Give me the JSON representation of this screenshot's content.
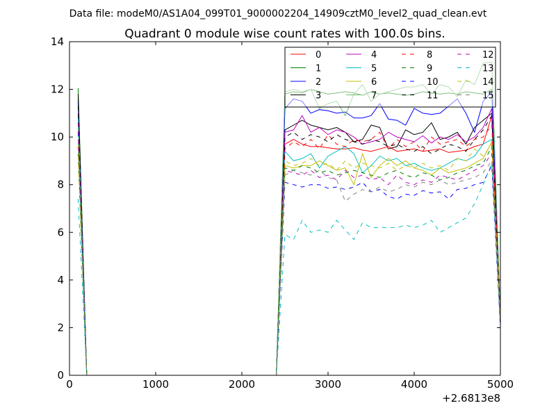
{
  "suptitle": "Data file: modeM0/AS1A04_099T01_9000002204_14909cztM0_level2_quad_clean.evt",
  "chart_data": {
    "type": "line",
    "title": "Quadrant 0 module wise count rates with 100.0s bins.",
    "xlabel": "",
    "ylabel": "",
    "x_offset_label": "+2.6813e8",
    "xlim": [
      0,
      5000
    ],
    "ylim": [
      0,
      14
    ],
    "xticks": [
      0,
      1000,
      2000,
      3000,
      4000,
      5000
    ],
    "yticks": [
      0,
      2,
      4,
      6,
      8,
      10,
      12,
      14
    ],
    "grid": false,
    "legend": {
      "placement": "top-right",
      "columns": 4
    },
    "x": [
      100,
      200,
      300,
      400,
      500,
      600,
      700,
      800,
      900,
      1000,
      1100,
      1200,
      1300,
      1400,
      1500,
      1600,
      1700,
      1800,
      1900,
      2000,
      2100,
      2200,
      2300,
      2400,
      2500,
      2600,
      2700,
      2800,
      2900,
      3000,
      3100,
      3200,
      3300,
      3400,
      3500,
      3600,
      3700,
      3800,
      3900,
      4000,
      4100,
      4200,
      4300,
      4400,
      4500,
      4600,
      4700,
      4800,
      4900,
      5000
    ],
    "series": [
      {
        "name": "0",
        "color": "#ff0000",
        "dash": "solid",
        "values": [
          11.6,
          0,
          0,
          0,
          0,
          0,
          0,
          0,
          0,
          0,
          0,
          0,
          0,
          0,
          0,
          0,
          0,
          0,
          0,
          0,
          0,
          0,
          0,
          0,
          9.7,
          9.9,
          9.7,
          9.6,
          9.6,
          9.55,
          9.5,
          9.5,
          9.55,
          9.45,
          9.4,
          9.5,
          9.6,
          9.4,
          9.45,
          9.5,
          9.4,
          9.45,
          9.5,
          9.35,
          9.4,
          9.45,
          9.6,
          9.7,
          10.9,
          2.2
        ]
      },
      {
        "name": "1",
        "color": "#007f00",
        "dash": "solid",
        "values": [
          12.05,
          0,
          0,
          0,
          0,
          0,
          0,
          0,
          0,
          0,
          0,
          0,
          0,
          0,
          0,
          0,
          0,
          0,
          0,
          0,
          0,
          0,
          0,
          0,
          11.8,
          11.9,
          11.85,
          12.0,
          11.9,
          11.8,
          11.85,
          11.9,
          11.85,
          11.75,
          11.9,
          11.8,
          11.85,
          11.8,
          11.75,
          11.8,
          11.9,
          11.85,
          11.8,
          11.85,
          11.8,
          11.9,
          11.85,
          11.8,
          12.0,
          2.3
        ]
      },
      {
        "name": "2",
        "color": "#0000ff",
        "dash": "solid",
        "values": [
          11.5,
          0,
          0,
          0,
          0,
          0,
          0,
          0,
          0,
          0,
          0,
          0,
          0,
          0,
          0,
          0,
          0,
          0,
          0,
          0,
          0,
          0,
          0,
          0,
          11.2,
          11.6,
          11.5,
          11.0,
          11.15,
          11.1,
          11.0,
          11.05,
          10.8,
          10.8,
          10.9,
          11.4,
          10.75,
          10.7,
          10.5,
          11.2,
          11.0,
          10.95,
          11.0,
          11.3,
          11.6,
          11.0,
          10.2,
          11.5,
          11.9,
          2.2
        ]
      },
      {
        "name": "3",
        "color": "#000000",
        "dash": "solid",
        "values": [
          11.8,
          0,
          0,
          0,
          0,
          0,
          0,
          0,
          0,
          0,
          0,
          0,
          0,
          0,
          0,
          0,
          0,
          0,
          0,
          0,
          0,
          0,
          0,
          0,
          10.3,
          10.5,
          10.7,
          10.5,
          10.4,
          10.3,
          10.4,
          10.2,
          9.8,
          9.9,
          10.5,
          10.4,
          9.5,
          9.6,
          10.3,
          10.1,
          10.2,
          10.6,
          9.9,
          10.0,
          10.2,
          9.7,
          10.4,
          10.7,
          11.0,
          2.6
        ]
      },
      {
        "name": "4",
        "color": "#bf00bf",
        "dash": "solid",
        "values": [
          11.0,
          0,
          0,
          0,
          0,
          0,
          0,
          0,
          0,
          0,
          0,
          0,
          0,
          0,
          0,
          0,
          0,
          0,
          0,
          0,
          0,
          0,
          0,
          0,
          10.2,
          10.3,
          10.9,
          10.2,
          10.4,
          10.1,
          10.3,
          10.2,
          10.0,
          9.7,
          9.8,
          9.9,
          10.2,
          10.0,
          9.9,
          9.8,
          10.05,
          9.75,
          10.0,
          9.9,
          10.1,
          9.8,
          10.0,
          10.4,
          11.2,
          2.3
        ]
      },
      {
        "name": "5",
        "color": "#00bfbf",
        "dash": "solid",
        "values": [
          10.9,
          0,
          0,
          0,
          0,
          0,
          0,
          0,
          0,
          0,
          0,
          0,
          0,
          0,
          0,
          0,
          0,
          0,
          0,
          0,
          0,
          0,
          0,
          0,
          9.4,
          9.0,
          9.1,
          9.3,
          8.7,
          9.2,
          9.4,
          9.6,
          9.3,
          8.5,
          8.8,
          9.2,
          9.0,
          9.1,
          8.8,
          8.9,
          8.7,
          8.6,
          8.7,
          8.9,
          9.1,
          9.0,
          9.2,
          9.7,
          9.9,
          2.1
        ]
      },
      {
        "name": "6",
        "color": "#bfbf00",
        "dash": "solid",
        "values": [
          9.8,
          0,
          0,
          0,
          0,
          0,
          0,
          0,
          0,
          0,
          0,
          0,
          0,
          0,
          0,
          0,
          0,
          0,
          0,
          0,
          0,
          0,
          0,
          0,
          8.8,
          8.7,
          8.8,
          8.8,
          9.0,
          8.8,
          8.6,
          8.7,
          8.0,
          9.3,
          8.3,
          8.8,
          9.1,
          8.8,
          9.0,
          8.7,
          8.6,
          8.4,
          8.7,
          8.5,
          8.6,
          8.7,
          8.9,
          9.1,
          9.8,
          2.4
        ]
      },
      {
        "name": "7",
        "color": "#6cba6c",
        "dash": "solid",
        "values": [
          10.4,
          0,
          0,
          0,
          0,
          0,
          0,
          0,
          0,
          0,
          0,
          0,
          0,
          0,
          0,
          0,
          0,
          0,
          0,
          0,
          0,
          0,
          0,
          0,
          11.9,
          12.0,
          11.9,
          12.0,
          11.2,
          11.4,
          11.5,
          10.9,
          11.8,
          12.2,
          11.5,
          11.8,
          11.9,
          12.0,
          12.1,
          12.1,
          12.2,
          11.8,
          12.2,
          12.1,
          11.7,
          12.4,
          12.2,
          13.1,
          13.15,
          2.5
        ]
      },
      {
        "name": "8",
        "color": "#ff0000",
        "dash": "dashed",
        "values": [
          9.6,
          0,
          0,
          0,
          0,
          0,
          0,
          0,
          0,
          0,
          0,
          0,
          0,
          0,
          0,
          0,
          0,
          0,
          0,
          0,
          0,
          0,
          0,
          0,
          9.5,
          9.8,
          9.6,
          9.9,
          9.5,
          10.1,
          9.7,
          9.6,
          9.9,
          9.8,
          9.9,
          10.2,
          9.5,
          9.9,
          9.6,
          9.8,
          9.4,
          10.0,
          9.7,
          9.8,
          9.9,
          9.6,
          9.9,
          10.0,
          10.5,
          2.3
        ]
      },
      {
        "name": "9",
        "color": "#007f00",
        "dash": "dashed",
        "values": [
          9.3,
          0,
          0,
          0,
          0,
          0,
          0,
          0,
          0,
          0,
          0,
          0,
          0,
          0,
          0,
          0,
          0,
          0,
          0,
          0,
          0,
          0,
          0,
          0,
          8.7,
          8.6,
          8.8,
          8.7,
          8.5,
          8.6,
          8.4,
          8.5,
          8.6,
          8.5,
          8.4,
          8.3,
          8.5,
          8.6,
          8.4,
          8.3,
          8.5,
          8.4,
          8.2,
          8.3,
          8.5,
          8.6,
          8.8,
          8.9,
          9.6,
          2.2
        ]
      },
      {
        "name": "10",
        "color": "#0000ff",
        "dash": "dashed",
        "values": [
          10.2,
          0,
          0,
          0,
          0,
          0,
          0,
          0,
          0,
          0,
          0,
          0,
          0,
          0,
          0,
          0,
          0,
          0,
          0,
          0,
          0,
          0,
          0,
          0,
          8.1,
          8.0,
          7.9,
          8.0,
          8.0,
          7.85,
          7.9,
          7.8,
          7.9,
          8.1,
          7.7,
          7.8,
          7.5,
          7.4,
          7.6,
          7.55,
          7.75,
          7.65,
          7.7,
          7.4,
          7.8,
          7.85,
          8.0,
          8.1,
          8.8,
          2.0
        ]
      },
      {
        "name": "11",
        "color": "#000000",
        "dash": "dashed",
        "values": [
          11.3,
          0,
          0,
          0,
          0,
          0,
          0,
          0,
          0,
          0,
          0,
          0,
          0,
          0,
          0,
          0,
          0,
          0,
          0,
          0,
          0,
          0,
          0,
          0,
          10.0,
          10.2,
          9.9,
          10.1,
          10.0,
          9.8,
          10.1,
          9.9,
          9.8,
          9.7,
          9.9,
          9.8,
          9.6,
          9.7,
          9.5,
          9.4,
          9.6,
          9.3,
          9.5,
          9.7,
          9.6,
          9.4,
          9.9,
          10.3,
          10.9,
          2.4
        ]
      },
      {
        "name": "12",
        "color": "#bf00bf",
        "dash": "dashed",
        "values": [
          10.6,
          0,
          0,
          0,
          0,
          0,
          0,
          0,
          0,
          0,
          0,
          0,
          0,
          0,
          0,
          0,
          0,
          0,
          0,
          0,
          0,
          0,
          0,
          0,
          8.6,
          8.5,
          8.4,
          8.6,
          8.3,
          8.4,
          8.2,
          8.6,
          8.3,
          8.4,
          8.2,
          8.3,
          8.0,
          8.4,
          8.1,
          8.0,
          8.2,
          8.1,
          8.4,
          8.3,
          8.2,
          8.4,
          8.6,
          8.8,
          9.3,
          2.2
        ]
      },
      {
        "name": "13",
        "color": "#00bfbf",
        "dash": "dashed",
        "values": [
          7.4,
          0,
          0,
          0,
          0,
          0,
          0,
          0,
          0,
          0,
          0,
          0,
          0,
          0,
          0,
          0,
          0,
          0,
          0,
          0,
          0,
          0,
          0,
          0,
          5.9,
          5.7,
          6.5,
          6.0,
          6.1,
          6.0,
          6.5,
          6.1,
          5.7,
          6.4,
          6.2,
          6.2,
          6.2,
          6.2,
          6.3,
          6.2,
          6.3,
          6.5,
          6.0,
          6.2,
          6.4,
          6.6,
          7.2,
          8.0,
          8.9,
          2.1
        ]
      },
      {
        "name": "14",
        "color": "#bfbf00",
        "dash": "dashed",
        "values": [
          9.2,
          0,
          0,
          0,
          0,
          0,
          0,
          0,
          0,
          0,
          0,
          0,
          0,
          0,
          0,
          0,
          0,
          0,
          0,
          0,
          0,
          0,
          0,
          0,
          9.0,
          8.8,
          8.9,
          9.1,
          8.8,
          8.9,
          8.6,
          9.0,
          8.7,
          8.9,
          8.8,
          8.7,
          8.9,
          8.6,
          8.8,
          8.7,
          8.9,
          8.7,
          8.8,
          8.6,
          9.1,
          9.0,
          9.5,
          9.2,
          9.7,
          2.3
        ]
      },
      {
        "name": "15",
        "color": "#808080",
        "dash": "dashed",
        "values": [
          9.9,
          0,
          0,
          0,
          0,
          0,
          0,
          0,
          0,
          0,
          0,
          0,
          0,
          0,
          0,
          0,
          0,
          0,
          0,
          0,
          0,
          0,
          0,
          0,
          8.4,
          8.6,
          8.5,
          8.4,
          8.6,
          8.3,
          8.2,
          7.3,
          7.6,
          7.8,
          7.7,
          7.9,
          7.7,
          7.8,
          8.0,
          7.9,
          8.1,
          8.0,
          8.2,
          8.0,
          8.1,
          8.2,
          8.3,
          8.5,
          9.0,
          2.2
        ]
      }
    ]
  }
}
